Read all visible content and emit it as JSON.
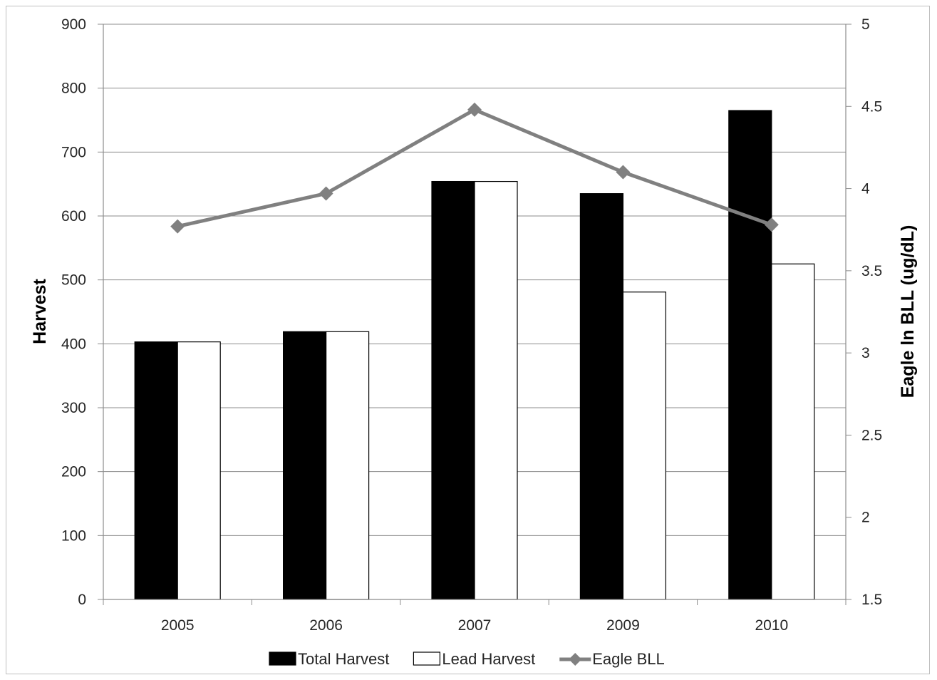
{
  "chart_data": {
    "type": "bar",
    "categories": [
      "2005",
      "2006",
      "2007",
      "2009",
      "2010"
    ],
    "series": [
      {
        "name": "Total Harvest",
        "kind": "bar",
        "axis": "left",
        "color": "#000000",
        "values": [
          403,
          419,
          654,
          635,
          765
        ]
      },
      {
        "name": "Lead Harvest",
        "kind": "bar",
        "axis": "left",
        "color": "#ffffff",
        "values": [
          403,
          419,
          654,
          481,
          525
        ]
      },
      {
        "name": "Eagle BLL",
        "kind": "line",
        "axis": "right",
        "color": "#808080",
        "marker": "diamond",
        "values": [
          3.77,
          3.97,
          4.48,
          4.1,
          3.78
        ]
      }
    ],
    "ylabel": "Harvest",
    "y2label": "Eagle ln BLL (ug/dL)",
    "ylim": [
      0,
      900
    ],
    "y2lim": [
      1.5,
      5
    ],
    "yticks": [
      "0",
      "100",
      "200",
      "300",
      "400",
      "500",
      "600",
      "700",
      "800",
      "900"
    ],
    "y2ticks": [
      "1.5",
      "2",
      "2.5",
      "3",
      "3.5",
      "4",
      "4.5",
      "5"
    ],
    "grid": true,
    "legend_position": "bottom"
  }
}
